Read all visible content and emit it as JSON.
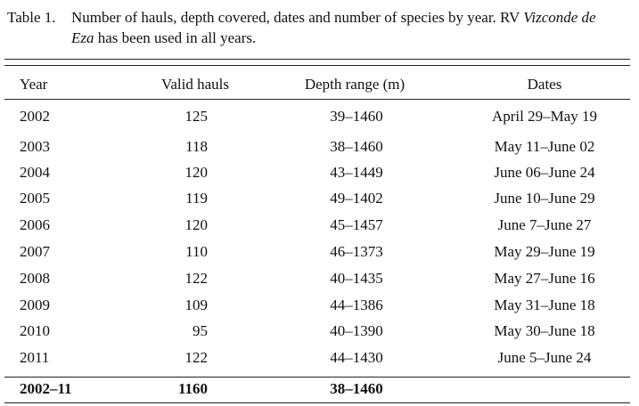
{
  "caption": {
    "label": "Table 1.",
    "text_before": "Number of hauls, depth covered, dates and number of species by year. RV",
    "italic": "Vizconde de Eza",
    "text_after": "has been used in all years."
  },
  "table": {
    "header": [
      "Year",
      "Valid hauls",
      "Depth range (m)",
      "Dates"
    ],
    "rows": [
      [
        2002,
        125,
        "39–1460",
        "April 29–May 19"
      ],
      [
        2003,
        118,
        "38–1460",
        "May 11–June 02"
      ],
      [
        2004,
        120,
        "43–1449",
        "June 06–June 24"
      ],
      [
        2005,
        119,
        "49–1402",
        "June 10–June 29"
      ],
      [
        2006,
        120,
        "45–1457",
        "June 7–June 27"
      ],
      [
        2007,
        110,
        "46–1373",
        "May 29–June 19"
      ],
      [
        2008,
        122,
        "40–1435",
        "May 27–June 16"
      ],
      [
        2009,
        109,
        "44–1386",
        "May 31–June 18"
      ],
      [
        2010,
        95,
        "40–1390",
        "May 30–June 18"
      ],
      [
        2011,
        122,
        "44–1430",
        "June 5–June 24"
      ]
    ],
    "total": [
      "2002–11",
      1160,
      "38–1460"
    ]
  }
}
